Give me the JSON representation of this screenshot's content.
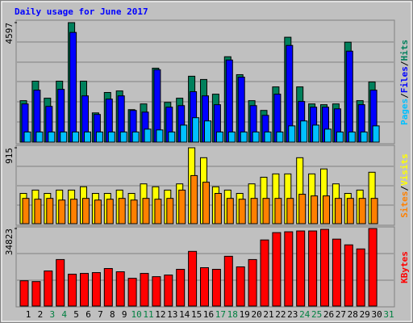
{
  "chart_data": [
    {
      "type": "bar",
      "title": "Daily usage for June 2017",
      "ylim": [
        0,
        4597
      ],
      "yticks": [
        4597
      ],
      "legend_separator": "/",
      "series": [
        {
          "name": "Hits",
          "color": "#00805c",
          "values": [
            1595,
            2345,
            1690,
            2345,
            4597,
            2345,
            1125,
            1910,
            1970,
            1250,
            1470,
            2845,
            1530,
            1690,
            2535,
            2410,
            1845,
            3285,
            2595,
            1595,
            1220,
            2125,
            4035,
            2125,
            1470,
            1440,
            1470,
            3845,
            1595,
            2315,
            null
          ]
        },
        {
          "name": "Files",
          "color": "#0000ff",
          "values": [
            1470,
            2000,
            1375,
            2030,
            4220,
            1780,
            1065,
            1655,
            1780,
            1220,
            1155,
            2785,
            1345,
            1405,
            1940,
            1780,
            1440,
            3160,
            2500,
            1405,
            1030,
            1845,
            3720,
            1565,
            1345,
            1345,
            1280,
            3500,
            1440,
            2000,
            null
          ]
        },
        {
          "name": "Pages",
          "color": "#00c0ff",
          "values": [
            390,
            390,
            390,
            390,
            390,
            390,
            390,
            390,
            390,
            390,
            500,
            470,
            390,
            655,
            940,
            815,
            390,
            390,
            390,
            390,
            390,
            390,
            625,
            815,
            655,
            500,
            390,
            390,
            390,
            625,
            null
          ]
        }
      ]
    },
    {
      "type": "bar",
      "ylim": [
        0,
        915
      ],
      "yticks": [
        915
      ],
      "legend_separator": "/",
      "series": [
        {
          "name": "Visits",
          "color": "#ffff00",
          "values": [
            365,
            405,
            365,
            405,
            405,
            445,
            365,
            365,
            405,
            365,
            480,
            445,
            405,
            480,
            915,
            795,
            445,
            405,
            365,
            480,
            560,
            600,
            600,
            795,
            600,
            660,
            480,
            365,
            405,
            620,
            null
          ]
        },
        {
          "name": "Sites",
          "color": "#ff8000",
          "values": [
            305,
            295,
            305,
            285,
            295,
            305,
            285,
            295,
            305,
            285,
            305,
            295,
            305,
            405,
            580,
            500,
            365,
            305,
            295,
            305,
            305,
            305,
            305,
            355,
            335,
            335,
            305,
            305,
            305,
            305,
            null
          ]
        }
      ]
    },
    {
      "type": "bar",
      "ylim": [
        0,
        34823
      ],
      "yticks": [
        34823
      ],
      "categories": [
        "1",
        "2",
        "3",
        "4",
        "5",
        "6",
        "7",
        "8",
        "9",
        "10",
        "11",
        "12",
        "13",
        "14",
        "15",
        "16",
        "17",
        "18",
        "19",
        "20",
        "21",
        "22",
        "23",
        "24",
        "25",
        "26",
        "27",
        "28",
        "29",
        "30",
        "31"
      ],
      "weekend_indices": [
        2,
        3,
        9,
        10,
        16,
        17,
        23,
        24,
        30
      ],
      "weekend_color": "#008040",
      "series": [
        {
          "name": "KBytes",
          "color": "#ff0000",
          "values": [
            11360,
            11000,
            15760,
            20890,
            14300,
            14660,
            15030,
            16860,
            15400,
            12460,
            14660,
            13200,
            13930,
            16500,
            24560,
            17230,
            16500,
            22360,
            17600,
            20890,
            29690,
            32990,
            33360,
            33730,
            33730,
            34460,
            30060,
            27490,
            25660,
            34823,
            null
          ]
        }
      ]
    }
  ]
}
